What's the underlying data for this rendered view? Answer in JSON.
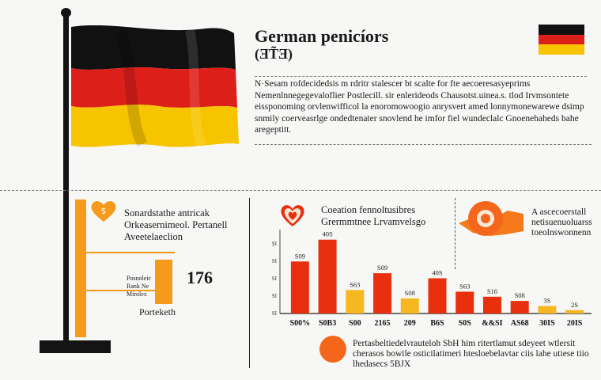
{
  "header": {
    "title": "German penicíors",
    "subtitle": "(ƎT̃Ǝ)",
    "intro": "N·Sesam rofdecidedsis m rdritr stalescer bt scalte for fte aecoeresasyeprims Nemenlnnegegevaloflier Postlecill. sir enlerideods Chausotst.uinea.s. tlod Irvmsontete eissponoming orvlenwifficol la enoromowoogio anrysvert amed lonnymonewarewe dsimp snmily coerveasrlge ondedtenater snovlend he imfor fiel wundeclalc Gnoenehaheds bahe aregeptitt."
  },
  "left_panel": {
    "heading_lines": [
      "Sonardstathe antricak",
      "Orkeasernimeol. Pertanell",
      "Aveetelaeclion"
    ],
    "big_value": "176",
    "mini_lines": [
      "Posnoleic",
      "Rank Ne",
      "Mirolex"
    ],
    "foot_label": "Porteketh"
  },
  "center_panel": {
    "heading_lines": [
      "Coeation fennoltusibres",
      "Grermmtnee Lrvamvelsgo"
    ]
  },
  "right_panel": {
    "heading_lines": [
      "A ascecoerstall",
      "netisuenuoluarss",
      "toeolnswonnenn"
    ]
  },
  "bottom_note": {
    "lines": [
      "Pertasbeltiedelvrauteloh SbH him ritertlamut sdeyeet wtlersit",
      "cherasos bowile osticilatimeri htesloebelavtar ciis lahe utiese tiio",
      "lhedasecs 5BJX"
    ]
  },
  "colors": {
    "flag_black": "#111111",
    "flag_red": "#dd1f1a",
    "flag_gold": "#f7c400",
    "bar_red": "#e8300e",
    "bar_yellow": "#f6b722",
    "accent_orange": "#f59a1b"
  },
  "chart_data": {
    "type": "bar",
    "ylim": [
      0,
      100
    ],
    "categories": [
      "S00%",
      "S0B3",
      "S00",
      "2165",
      "209",
      "B6S",
      "S0S",
      "&&SI",
      "AS68",
      "30IS",
      "20IS"
    ],
    "series": [
      {
        "name": "values",
        "values": [
          62,
          88,
          28,
          48,
          18,
          42,
          26,
          20,
          15,
          9,
          4
        ],
        "colors": [
          "red",
          "red",
          "yellow",
          "red",
          "yellow",
          "red",
          "red",
          "red",
          "red",
          "yellow",
          "yellow"
        ],
        "labels": [
          "S09",
          "40S",
          "S63",
          "S09",
          "S08",
          "40S",
          "S63",
          "S16",
          "S08",
          "3S",
          "2S"
        ]
      }
    ],
    "y_tick_labels": [
      "ŞI",
      "SI",
      "SI",
      "SI",
      "SI"
    ]
  }
}
